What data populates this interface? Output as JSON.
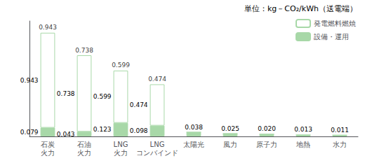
{
  "chart_data": {
    "type": "bar",
    "stacked": true,
    "categories": [
      "石炭\n火力",
      "石油\n火力",
      "LNG\n火力",
      "LNG\nコンバインド",
      "太陽光",
      "風力",
      "原子力",
      "地熱",
      "水力"
    ],
    "series": [
      {
        "name": "設備・運用",
        "color": "#a8d8a8",
        "values": [
          0.079,
          0.043,
          0.123,
          0.098,
          0.038,
          0.025,
          0.02,
          0.013,
          0.011
        ]
      },
      {
        "name": "発電燃料燃焼",
        "color": "#ffffff",
        "values": [
          0.864,
          0.695,
          0.476,
          0.376,
          0.0,
          0.0,
          0.0,
          0.0,
          0.0
        ]
      }
    ],
    "totals": [
      0.943,
      0.738,
      0.599,
      0.474,
      0.038,
      0.025,
      0.02,
      0.013,
      0.011
    ],
    "annotations": [
      "単位：kg－CO₂/kWh（送電端）"
    ],
    "ylim": [
      0,
      1.05
    ],
    "tick_labels": "x",
    "grid": false,
    "legend": "upper right",
    "data_labels": true
  }
}
